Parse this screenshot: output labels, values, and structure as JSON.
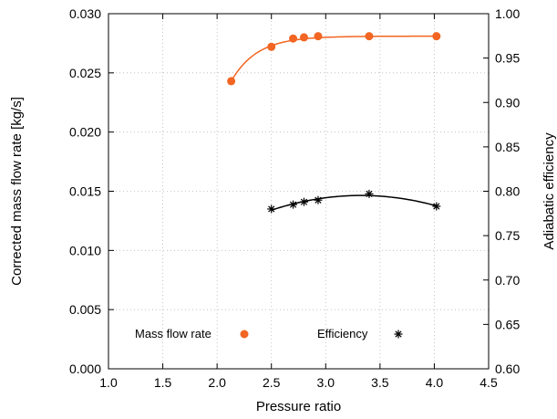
{
  "chart_data": {
    "type": "scatter",
    "xlabel": "Pressure ratio",
    "ylabel": "Corrected mass flow rate [kg/s]",
    "y2label": "Adiabatic efficiency",
    "xlim": [
      1.0,
      4.5
    ],
    "ylim": [
      0.0,
      0.03
    ],
    "y2lim": [
      0.6,
      1.0
    ],
    "x_ticks": [
      "1.0",
      "1.5",
      "2.0",
      "2.5",
      "3.0",
      "3.5",
      "4.0",
      "4.5"
    ],
    "y_ticks": [
      "0.000",
      "0.005",
      "0.010",
      "0.015",
      "0.020",
      "0.025",
      "0.030"
    ],
    "y2_ticks": [
      "0.60",
      "0.65",
      "0.70",
      "0.75",
      "0.80",
      "0.85",
      "0.90",
      "0.95",
      "1.00"
    ],
    "grid": true,
    "legend_position": "bottom",
    "series": [
      {
        "name": "Mass flow rate",
        "axis": "left",
        "marker": "circle",
        "color": "#f26522",
        "fit_curve": true,
        "x": [
          2.13,
          2.5,
          2.7,
          2.8,
          2.93,
          3.4,
          4.02
        ],
        "y": [
          0.0243,
          0.0272,
          0.0279,
          0.028,
          0.0281,
          0.0281,
          0.0281
        ]
      },
      {
        "name": "Efficiency",
        "axis": "right",
        "marker": "asterisk",
        "color": "#000000",
        "fit_curve": true,
        "x": [
          2.5,
          2.7,
          2.8,
          2.93,
          3.4,
          4.02
        ],
        "y": [
          0.78,
          0.785,
          0.788,
          0.79,
          0.797,
          0.783
        ]
      }
    ]
  }
}
